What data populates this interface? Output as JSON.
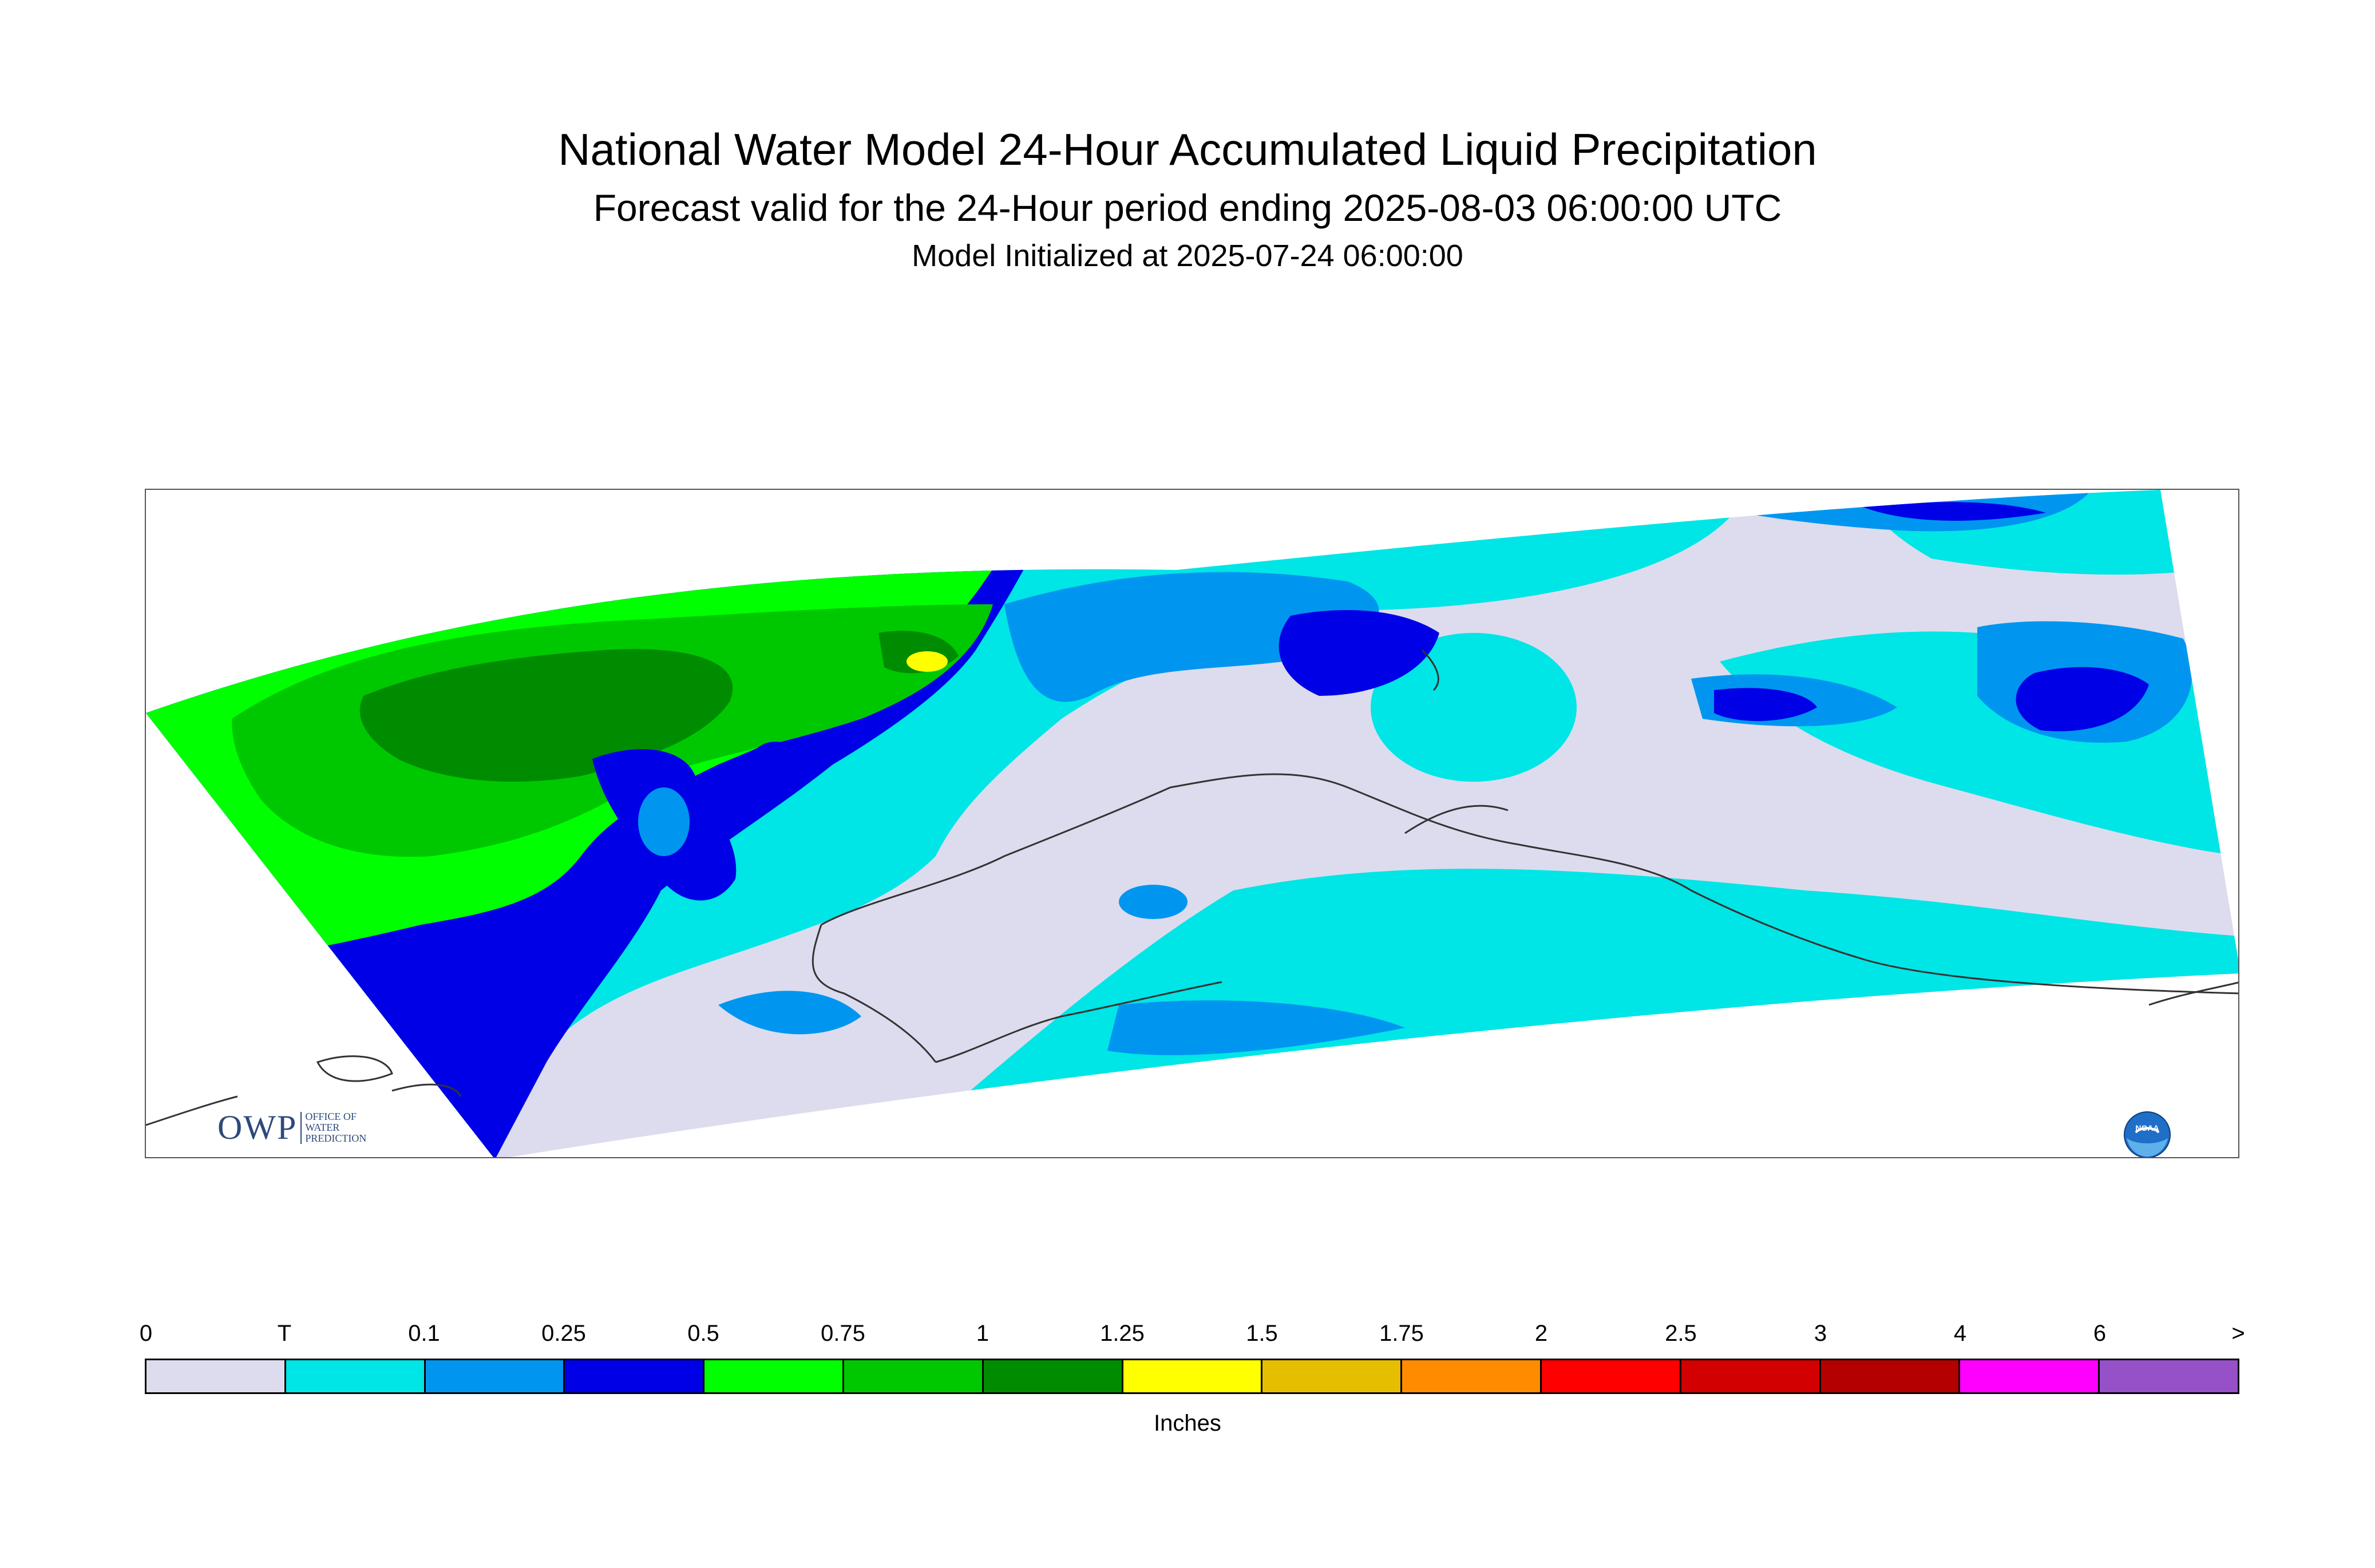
{
  "header": {
    "title": "National Water Model 24-Hour Accumulated Liquid Precipitation",
    "subtitle": "Forecast valid for the 24-Hour period ending 2025-08-03 06:00:00 UTC",
    "init": "Model Initialized at 2025-07-24 06:00:00"
  },
  "logos": {
    "owp_main": "OWP",
    "owp_line1": "OFFICE OF",
    "owp_line2": "WATER",
    "owp_line3": "PREDICTION",
    "noaa": "NOAA"
  },
  "legend": {
    "units": "Inches",
    "ticks": [
      "0",
      "T",
      "0.1",
      "0.25",
      "0.5",
      "0.75",
      "1",
      "1.25",
      "1.5",
      "1.75",
      "2",
      "2.5",
      "3",
      "4",
      "6",
      ">"
    ],
    "colors": [
      "#dcdcee",
      "#00e5e5",
      "#0096f0",
      "#0000e6",
      "#00ff00",
      "#00c800",
      "#008c00",
      "#ffff00",
      "#e6be00",
      "#ff8c00",
      "#ff0000",
      "#d20000",
      "#b40000",
      "#ff00ff",
      "#9650c8"
    ]
  },
  "palette": {
    "zero": "#dcdcee",
    "trace": "#00e5e5",
    "p10": "#0096f0",
    "p25": "#0000e6",
    "p50": "#00ff00",
    "p75": "#00c800",
    "p100": "#008c00",
    "p125": "#ffff00"
  }
}
